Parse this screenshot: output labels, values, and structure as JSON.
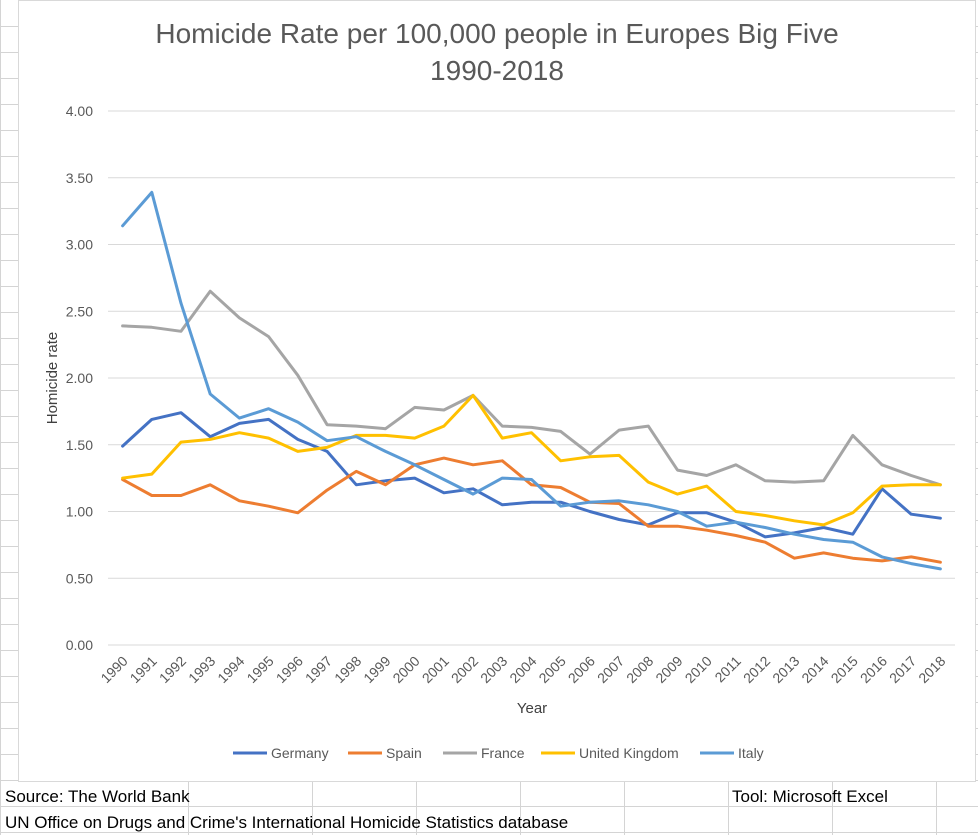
{
  "chart_data": {
    "type": "line",
    "title": "Homicide Rate per 100,000 people in Europes Big Five",
    "subtitle": "1990-2018",
    "xlabel": "Year",
    "ylabel": "Homicide rate",
    "ylim": [
      0,
      4
    ],
    "yticks": [
      "0.00",
      "0.50",
      "1.00",
      "1.50",
      "2.00",
      "2.50",
      "3.00",
      "3.50",
      "4.00"
    ],
    "grid": "horizontal",
    "legend_position": "bottom",
    "x": [
      "1990",
      "1991",
      "1992",
      "1993",
      "1994",
      "1995",
      "1996",
      "1997",
      "1998",
      "1999",
      "2000",
      "2001",
      "2002",
      "2003",
      "2004",
      "2005",
      "2006",
      "2007",
      "2008",
      "2009",
      "2010",
      "2011",
      "2012",
      "2013",
      "2014",
      "2015",
      "2016",
      "2017",
      "2018"
    ],
    "series": [
      {
        "name": "Germany",
        "color": "#4472c4",
        "values": [
          1.49,
          1.69,
          1.74,
          1.56,
          1.66,
          1.69,
          1.54,
          1.45,
          1.2,
          1.23,
          1.25,
          1.14,
          1.17,
          1.05,
          1.07,
          1.07,
          1.0,
          0.94,
          0.9,
          0.99,
          0.99,
          0.92,
          0.81,
          0.84,
          0.88,
          0.83,
          1.17,
          0.98,
          0.95
        ]
      },
      {
        "name": "Spain",
        "color": "#ed7d31",
        "values": [
          1.24,
          1.12,
          1.12,
          1.2,
          1.08,
          1.04,
          0.99,
          1.16,
          1.3,
          1.2,
          1.35,
          1.4,
          1.35,
          1.38,
          1.2,
          1.18,
          1.07,
          1.06,
          0.89,
          0.89,
          0.86,
          0.82,
          0.77,
          0.65,
          0.69,
          0.65,
          0.63,
          0.66,
          0.62
        ]
      },
      {
        "name": "France",
        "color": "#a5a5a5",
        "values": [
          2.39,
          2.38,
          2.35,
          2.65,
          2.45,
          2.31,
          2.02,
          1.65,
          1.64,
          1.62,
          1.78,
          1.76,
          1.87,
          1.64,
          1.63,
          1.6,
          1.43,
          1.61,
          1.64,
          1.31,
          1.27,
          1.35,
          1.23,
          1.22,
          1.23,
          1.57,
          1.35,
          1.27,
          1.2
        ]
      },
      {
        "name": "United Kingdom",
        "color": "#ffc000",
        "values": [
          1.25,
          1.28,
          1.52,
          1.54,
          1.59,
          1.55,
          1.45,
          1.48,
          1.57,
          1.57,
          1.55,
          1.64,
          1.87,
          1.55,
          1.59,
          1.38,
          1.41,
          1.42,
          1.22,
          1.13,
          1.19,
          1.0,
          0.97,
          0.93,
          0.9,
          0.99,
          1.19,
          1.2,
          1.2
        ]
      },
      {
        "name": "Italy",
        "color": "#5b9bd5",
        "values": [
          3.14,
          3.39,
          2.56,
          1.88,
          1.7,
          1.77,
          1.67,
          1.53,
          1.56,
          1.45,
          1.35,
          1.24,
          1.13,
          1.25,
          1.24,
          1.04,
          1.07,
          1.08,
          1.05,
          1.0,
          0.89,
          0.92,
          0.88,
          0.83,
          0.79,
          0.77,
          0.66,
          0.61,
          0.57
        ]
      }
    ]
  },
  "footer": {
    "source": "Source: The World Bank",
    "tool": "Tool: Microsoft Excel",
    "database": "UN Office on Drugs and Crime's International Homicide Statistics database"
  }
}
